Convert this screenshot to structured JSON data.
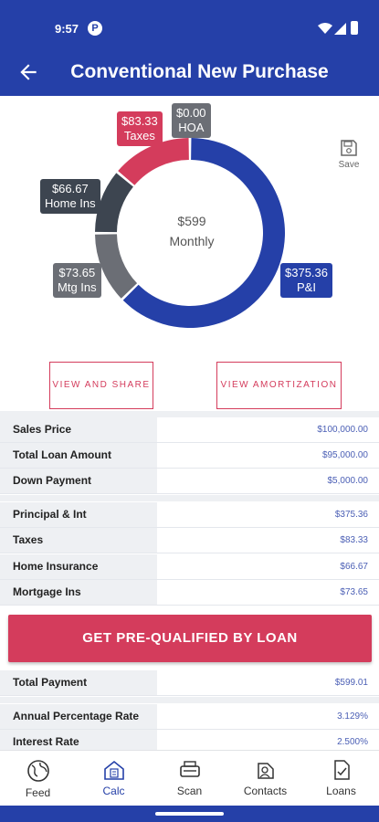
{
  "status_bar": {
    "time": "9:57",
    "notif_glyph": "P",
    "icons": [
      "wifi-icon",
      "signal-icon",
      "battery-icon"
    ]
  },
  "app_bar": {
    "title": "Conventional New Purchase"
  },
  "chart_data": {
    "type": "donut",
    "title": "",
    "center_value": "$599",
    "center_label": "Monthly",
    "slices": [
      {
        "name": "P&I",
        "label": "$375.36",
        "value": 375.36,
        "color": "#2540a8"
      },
      {
        "name": "Mtg Ins",
        "label": "$73.65",
        "value": 73.65,
        "color": "#6b6e75"
      },
      {
        "name": "Home Ins",
        "label": "$66.67",
        "value": 66.67,
        "color": "#3d4550"
      },
      {
        "name": "Taxes",
        "label": "$83.33",
        "value": 83.33,
        "color": "#d43c5c"
      },
      {
        "name": "HOA",
        "label": "$0.00",
        "value": 0.0,
        "color": "#6b6e75"
      }
    ]
  },
  "save": {
    "label": "Save"
  },
  "actions": {
    "view_share": "VIEW AND SHARE",
    "view_amortization": "VIEW AMORTIZATION"
  },
  "loan": [
    {
      "label": "Sales Price",
      "value": "$100,000.00"
    },
    {
      "label": "Total Loan Amount",
      "value": "$95,000.00"
    },
    {
      "label": "Down Payment",
      "value": "$5,000.00"
    }
  ],
  "breakdown": [
    {
      "label": "Principal & Int",
      "value": "$375.36"
    },
    {
      "label": "Taxes",
      "value": "$83.33"
    },
    {
      "label": "Home Insurance",
      "value": "$66.67"
    },
    {
      "label": "Mortgage Ins",
      "value": "$73.65"
    }
  ],
  "cta": {
    "label": "GET PRE-QUALIFIED BY LOAN"
  },
  "totals": {
    "label": "Total Payment",
    "value": "$599.01"
  },
  "rates": [
    {
      "label": "Annual Percentage Rate",
      "value": "3.129%"
    },
    {
      "label": "Interest Rate",
      "value": "2.500%"
    }
  ],
  "nav": {
    "items": [
      {
        "label": "Feed",
        "icon": "globe-icon"
      },
      {
        "label": "Calc",
        "icon": "calculator-home-icon"
      },
      {
        "label": "Scan",
        "icon": "scanner-icon"
      },
      {
        "label": "Contacts",
        "icon": "contacts-icon"
      },
      {
        "label": "Loans",
        "icon": "document-check-icon"
      }
    ],
    "active": "Calc"
  },
  "colors": {
    "primary": "#2540a8",
    "accent": "#d43c5c",
    "row_label_bg": "#eef0f3",
    "value_text": "#4b5fb5"
  }
}
